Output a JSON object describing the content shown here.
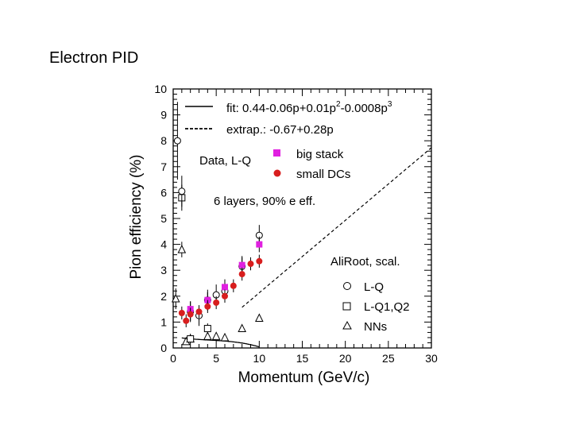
{
  "slide": {
    "title": "Electron PID"
  },
  "chart_data": {
    "type": "scatter",
    "xlabel": "Momentum (GeV/c)",
    "ylabel": "Pion efficiency (%)",
    "xlim": [
      0,
      30
    ],
    "ylim": [
      0,
      10
    ],
    "xticks": [
      0,
      5,
      10,
      15,
      20,
      25,
      30
    ],
    "yticks": [
      0,
      1,
      2,
      3,
      4,
      5,
      6,
      7,
      8,
      9,
      10
    ],
    "grid": false,
    "colors": {
      "magenta": "#e020e0",
      "red": "#d81e1e",
      "black": "#000000"
    },
    "fit": {
      "label": "fit: 0.44-0.06p+0.01p",
      "sup1": "2",
      "mid": "-0.0008p",
      "sup2": "3",
      "coeffs": [
        0.44,
        -0.06,
        0.01,
        -0.0008
      ],
      "range": [
        1,
        10
      ]
    },
    "extrap": {
      "label": "extrap.: -0.67+0.28p",
      "coeffs": [
        -0.67,
        0.28
      ],
      "range": [
        8,
        30
      ]
    },
    "annotations": {
      "data_label": "Data, L-Q",
      "layers": "6 layers, 90% e eff.",
      "aliroot": "AliRoot, scal."
    },
    "series": [
      {
        "name": "big stack",
        "marker": "square-filled",
        "color": "#e020e0",
        "x": [
          2,
          4,
          6,
          8,
          10
        ],
        "y": [
          1.5,
          1.85,
          2.35,
          3.2,
          4.0
        ],
        "err": [
          0.3,
          0.3,
          0.3,
          0.3,
          0.3
        ]
      },
      {
        "name": "small DCs",
        "marker": "circle-filled",
        "color": "#d81e1e",
        "x": [
          1,
          1.5,
          2,
          3,
          4,
          5,
          6,
          7,
          8,
          9,
          10
        ],
        "y": [
          1.35,
          1.05,
          1.3,
          1.4,
          1.6,
          1.75,
          2.0,
          2.4,
          2.85,
          3.25,
          3.35
        ],
        "err": [
          0.25,
          0.25,
          0.25,
          0.25,
          0.25,
          0.25,
          0.25,
          0.25,
          0.25,
          0.25,
          0.25
        ]
      },
      {
        "name": "L-Q",
        "marker": "circle-open",
        "color": "#000000",
        "x": [
          0.5,
          1,
          2,
          3,
          4,
          5,
          6,
          8,
          10
        ],
        "y": [
          8.0,
          6.05,
          1.4,
          1.25,
          1.85,
          2.05,
          2.2,
          3.15,
          4.35
        ],
        "err": [
          1.5,
          0.6,
          0.4,
          0.4,
          0.4,
          0.4,
          0.4,
          0.4,
          0.4
        ]
      },
      {
        "name": "L-Q1,Q2",
        "marker": "square-open",
        "color": "#000000",
        "x": [
          1,
          2,
          4
        ],
        "y": [
          5.8,
          0.35,
          0.75
        ],
        "err": [
          0.5,
          0.2,
          0.2
        ]
      },
      {
        "name": "NNs",
        "marker": "triangle-open",
        "color": "#000000",
        "x": [
          0.3,
          1,
          1.5,
          2,
          4,
          5,
          6,
          8,
          10
        ],
        "y": [
          1.9,
          3.8,
          0.25,
          0.35,
          0.45,
          0.45,
          0.4,
          0.75,
          1.15
        ],
        "err": [
          0.4,
          0.3,
          0.1,
          0.1,
          0.1,
          0.1,
          0.1,
          0.1,
          0.1
        ]
      }
    ]
  }
}
